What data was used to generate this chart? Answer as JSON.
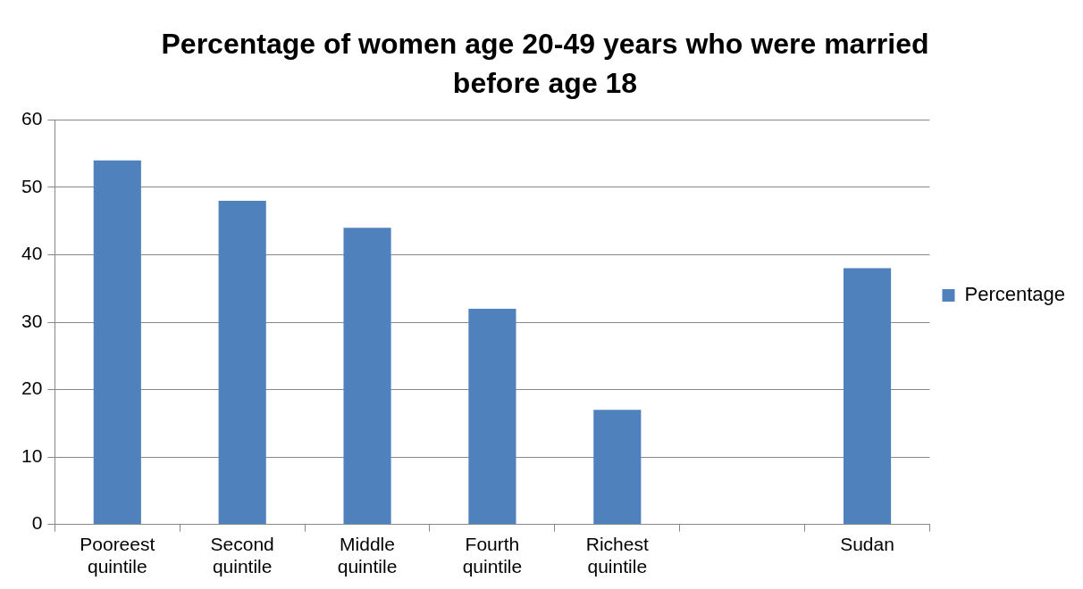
{
  "chart_data": {
    "type": "bar",
    "title": "Percentage of women age 20-49 years who were married before age 18",
    "categories": [
      "Pooreest quintile",
      "Second quintile",
      "Middle quintile",
      "Fourth quintile",
      "Richest quintile",
      null,
      "Sudan"
    ],
    "series": [
      {
        "name": "Percentage",
        "color": "#4f81bd",
        "values": [
          54,
          48,
          44,
          32,
          17,
          null,
          38
        ]
      }
    ],
    "ylim": [
      0,
      60
    ],
    "yticks": [
      0,
      10,
      20,
      30,
      40,
      50,
      60
    ],
    "grid": "y",
    "legend": "right"
  }
}
